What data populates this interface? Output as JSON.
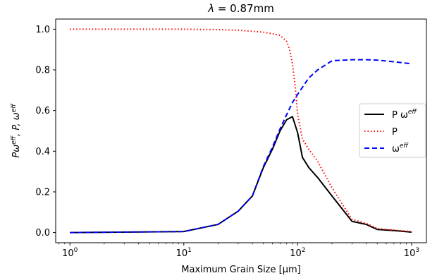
{
  "chart_data": {
    "type": "line",
    "title_symbol": "λ",
    "title_rest": " = 0.87mm",
    "xlabel": "Maximum Grain Size [μm]",
    "ylabel": {
      "a": "Pω",
      "a_sup": "eff",
      "b": ", P, ω",
      "b_sup": "eff"
    },
    "x_scale": "log",
    "xlim": [
      0.75,
      1350
    ],
    "ylim": [
      -0.05,
      1.05
    ],
    "grid": false,
    "legend_position": "center-right",
    "x_ticks": [
      {
        "value": 1,
        "base": "10",
        "exp": "0"
      },
      {
        "value": 10,
        "base": "10",
        "exp": "1"
      },
      {
        "value": 100,
        "base": "10",
        "exp": "2"
      },
      {
        "value": 1000,
        "base": "10",
        "exp": "3"
      }
    ],
    "y_ticks": [
      {
        "value": 0.0,
        "label": "0.0"
      },
      {
        "value": 0.2,
        "label": "0.2"
      },
      {
        "value": 0.4,
        "label": "0.4"
      },
      {
        "value": 0.6,
        "label": "0.6"
      },
      {
        "value": 0.8,
        "label": "0.8"
      },
      {
        "value": 1.0,
        "label": "1.0"
      }
    ],
    "series": [
      {
        "name_main": "P ω",
        "name_sup": "eff",
        "color": "#000000",
        "dash": "",
        "x": [
          1,
          10,
          20,
          30,
          40,
          50,
          60,
          70,
          80,
          90,
          100,
          110,
          125,
          150,
          200,
          300,
          400,
          500,
          700,
          1000
        ],
        "y": [
          0.0,
          0.005,
          0.04,
          0.105,
          0.18,
          0.32,
          0.41,
          0.5,
          0.555,
          0.57,
          0.49,
          0.37,
          0.32,
          0.27,
          0.18,
          0.055,
          0.04,
          0.015,
          0.01,
          0.002
        ]
      },
      {
        "name_main": "P",
        "name_sup": "",
        "color": "#ff0000",
        "dash": "1.5,3",
        "x": [
          1,
          10,
          20,
          30,
          40,
          50,
          60,
          70,
          80,
          85,
          90,
          95,
          100,
          110,
          125,
          150,
          200,
          300,
          400,
          500,
          700,
          1000
        ],
        "y": [
          1.0,
          1.0,
          0.998,
          0.995,
          0.99,
          0.985,
          0.978,
          0.97,
          0.94,
          0.9,
          0.83,
          0.72,
          0.58,
          0.46,
          0.41,
          0.35,
          0.22,
          0.065,
          0.045,
          0.02,
          0.012,
          0.005
        ]
      },
      {
        "name_main": "ω",
        "name_sup": "eff",
        "color": "#0000ff",
        "dash": "7,4",
        "x": [
          1,
          10,
          20,
          30,
          40,
          50,
          60,
          70,
          80,
          90,
          100,
          125,
          150,
          200,
          300,
          400,
          500,
          700,
          1000
        ],
        "y": [
          0.0,
          0.005,
          0.04,
          0.105,
          0.18,
          0.325,
          0.42,
          0.51,
          0.58,
          0.64,
          0.68,
          0.76,
          0.8,
          0.845,
          0.85,
          0.85,
          0.848,
          0.84,
          0.83
        ]
      }
    ]
  }
}
